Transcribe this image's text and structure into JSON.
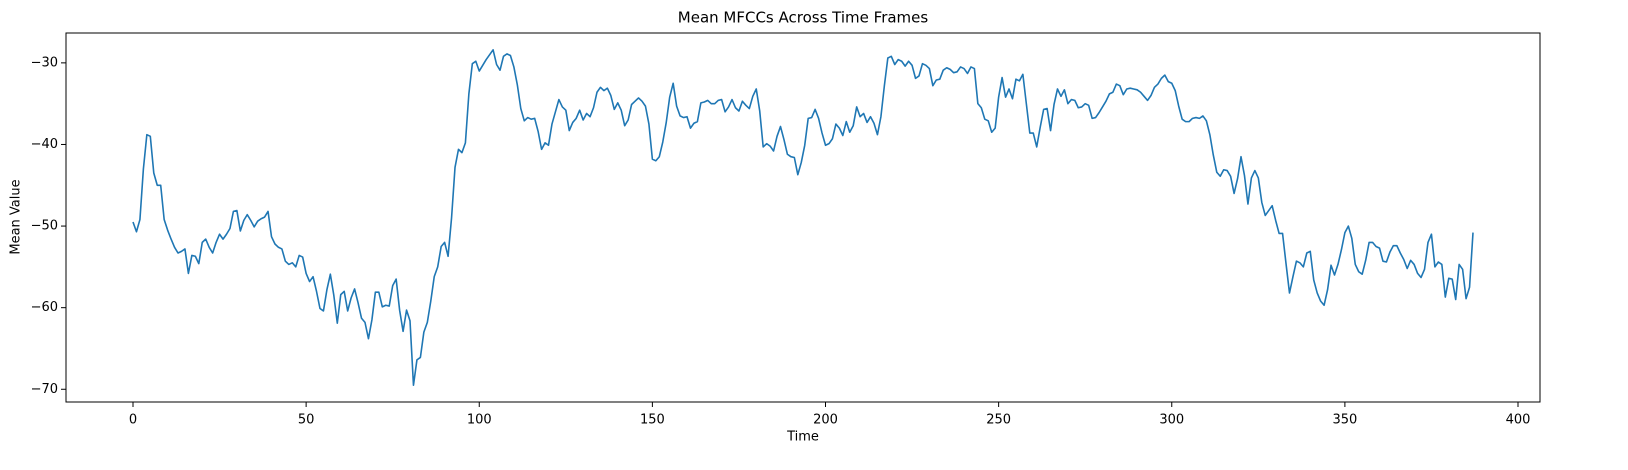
{
  "chart_data": {
    "type": "line",
    "title": "Mean MFCCs Across Time Frames",
    "x_label": "Time",
    "y_label": "Mean Value",
    "color": "#1f77b4",
    "x": [
      0,
      1,
      2,
      3,
      4,
      5,
      6,
      7,
      8,
      9,
      10,
      11,
      12,
      13,
      14,
      15,
      16,
      17,
      18,
      19,
      20,
      21,
      22,
      23,
      24,
      25,
      26,
      27,
      28,
      29,
      30,
      31,
      32,
      33,
      34,
      35,
      36,
      37,
      38,
      39,
      40,
      41,
      42,
      43,
      44,
      45,
      46,
      47,
      48,
      49,
      50,
      51,
      52,
      53,
      54,
      55,
      56,
      57,
      58,
      59,
      60,
      61,
      62,
      63,
      64,
      65,
      66,
      67,
      68,
      69,
      70,
      71,
      72,
      73,
      74,
      75,
      76,
      77,
      78,
      79,
      80,
      81,
      82,
      83,
      84,
      85,
      86,
      87,
      88,
      89,
      90,
      91,
      92,
      93,
      94,
      95,
      96,
      97,
      98,
      99,
      100,
      101,
      102,
      103,
      104,
      105,
      106,
      107,
      108,
      109,
      110,
      111,
      112,
      113,
      114,
      115,
      116,
      117,
      118,
      119,
      120,
      121,
      122,
      123,
      124,
      125,
      126,
      127,
      128,
      129,
      130,
      131,
      132,
      133,
      134,
      135,
      136,
      137,
      138,
      139,
      140,
      141,
      142,
      143,
      144,
      145,
      146,
      147,
      148,
      149,
      150,
      151,
      152,
      153,
      154,
      155,
      156,
      157,
      158,
      159,
      160,
      161,
      162,
      163,
      164,
      165,
      166,
      167,
      168,
      169,
      170,
      171,
      172,
      173,
      174,
      175,
      176,
      177,
      178,
      179,
      180,
      181,
      182,
      183,
      184,
      185,
      186,
      187,
      188,
      189,
      190,
      191,
      192,
      193,
      194,
      195,
      196,
      197,
      198,
      199,
      200,
      201,
      202,
      203,
      204,
      205,
      206,
      207,
      208,
      209,
      210,
      211,
      212,
      213,
      214,
      215,
      216,
      217,
      218,
      219,
      220,
      221,
      222,
      223,
      224,
      225,
      226,
      227,
      228,
      229,
      230,
      231,
      232,
      233,
      234,
      235,
      236,
      237,
      238,
      239,
      240,
      241,
      242,
      243,
      244,
      245,
      246,
      247,
      248,
      249,
      250,
      251,
      252,
      253,
      254,
      255,
      256,
      257,
      258,
      259,
      260,
      261,
      262,
      263,
      264,
      265,
      266,
      267,
      268,
      269,
      270,
      271,
      272,
      273,
      274,
      275,
      276,
      277,
      278,
      279,
      280,
      281,
      282,
      283,
      284,
      285,
      286,
      287,
      288,
      289,
      290,
      291,
      292,
      293,
      294,
      295,
      296,
      297,
      298,
      299,
      300,
      301,
      302,
      303,
      304,
      305,
      306,
      307,
      308,
      309,
      310,
      311,
      312,
      313,
      314,
      315,
      316,
      317,
      318,
      319,
      320,
      321,
      322,
      323,
      324,
      325,
      326,
      327,
      328,
      329,
      330,
      331,
      332,
      333,
      334,
      335,
      336,
      337,
      338,
      339,
      340,
      341,
      342,
      343,
      344,
      345,
      346,
      347,
      348,
      349,
      350,
      351,
      352,
      353,
      354,
      355,
      356,
      357,
      358,
      359,
      360,
      361,
      362,
      363,
      364,
      365,
      366,
      367,
      368,
      369,
      370,
      371,
      372,
      373,
      374,
      375,
      376,
      377,
      378,
      379,
      380,
      381,
      382,
      383,
      384,
      385,
      386,
      387
    ],
    "values": [
      -49.5,
      -50.7,
      -49.2,
      -43,
      -38.8,
      -39,
      -43.5,
      -45,
      -45,
      -49.2,
      -50.5,
      -51.6,
      -52.6,
      -53.3,
      -53.1,
      -52.8,
      -55.8,
      -53.6,
      -53.7,
      -54.6,
      -52,
      -51.6,
      -52.6,
      -53.3,
      -52,
      -51,
      -51.6,
      -51,
      -50.3,
      -48.2,
      -48.1,
      -50.6,
      -49.3,
      -48.6,
      -49.3,
      -50.1,
      -49.4,
      -49.1,
      -48.9,
      -48.2,
      -51.3,
      -52.2,
      -52.6,
      -52.8,
      -54.3,
      -54.7,
      -54.5,
      -55,
      -53.6,
      -53.8,
      -55.8,
      -56.8,
      -56.2,
      -58,
      -60.1,
      -60.4,
      -57.8,
      -55.9,
      -58.5,
      -61.9,
      -58.4,
      -58,
      -60.4,
      -58.8,
      -57.7,
      -59.4,
      -61.3,
      -61.8,
      -63.8,
      -61.5,
      -58.1,
      -58.1,
      -59.9,
      -59.7,
      -59.8,
      -57.3,
      -56.5,
      -60.3,
      -62.9,
      -60.3,
      -61.6,
      -69.5,
      -66.4,
      -66.1,
      -63,
      -61.8,
      -59.2,
      -56.2,
      -55,
      -52.5,
      -52,
      -53.7,
      -49,
      -42.8,
      -40.6,
      -41,
      -39.8,
      -33.8,
      -30.1,
      -29.8,
      -31,
      -30.3,
      -29.6,
      -29,
      -28.4,
      -30.2,
      -30.9,
      -29.2,
      -28.9,
      -29.1,
      -30.5,
      -32.7,
      -35.6,
      -37.1,
      -36.7,
      -36.9,
      -36.8,
      -38.4,
      -40.6,
      -39.8,
      -40.1,
      -37.5,
      -36,
      -34.5,
      -35.4,
      -35.8,
      -38.3,
      -37.3,
      -36.8,
      -35.8,
      -37,
      -36.2,
      -36.6,
      -35.5,
      -33.6,
      -33,
      -33.4,
      -33.1,
      -34,
      -35.7,
      -34.9,
      -35.8,
      -37.7,
      -37,
      -35.1,
      -34.7,
      -34.3,
      -34.7,
      -35.3,
      -37.5,
      -41.8,
      -42,
      -41.5,
      -39.7,
      -37.3,
      -34.2,
      -32.5,
      -35.3,
      -36.5,
      -36.7,
      -36.6,
      -38,
      -37.4,
      -37.2,
      -34.9,
      -34.8,
      -34.6,
      -35,
      -35,
      -34.6,
      -34.5,
      -36,
      -35.4,
      -34.5,
      -35.5,
      -35.9,
      -34.7,
      -35.2,
      -35.6,
      -34.1,
      -33.2,
      -35.9,
      -40.3,
      -39.9,
      -40.2,
      -40.8,
      -39,
      -37.8,
      -39.4,
      -41.2,
      -41.5,
      -41.6,
      -43.7,
      -42.2,
      -40.1,
      -36.8,
      -36.7,
      -35.7,
      -36.8,
      -38.6,
      -40.1,
      -39.9,
      -39.3,
      -37.5,
      -38,
      -38.9,
      -37.2,
      -38.5,
      -37.7,
      -35.4,
      -36.6,
      -36.2,
      -37.3,
      -36.6,
      -37.4,
      -38.8,
      -36.6,
      -32.8,
      -29.4,
      -29.2,
      -30.2,
      -29.6,
      -29.8,
      -30.4,
      -29.8,
      -30.3,
      -31.9,
      -31.6,
      -30.1,
      -30.3,
      -30.7,
      -32.8,
      -32.1,
      -32,
      -30.9,
      -30.6,
      -30.8,
      -31.2,
      -31.1,
      -30.5,
      -30.7,
      -31.3,
      -30.5,
      -30.7,
      -35,
      -35.5,
      -36.9,
      -37.1,
      -38.5,
      -38,
      -34.2,
      -31.8,
      -34.2,
      -33.2,
      -34.4,
      -32,
      -32.2,
      -31.4,
      -35,
      -38.6,
      -38.6,
      -40.3,
      -37.9,
      -35.7,
      -35.6,
      -38.3,
      -35.1,
      -33.2,
      -34.1,
      -33.3,
      -35,
      -34.5,
      -34.6,
      -35.5,
      -35.4,
      -35,
      -35.2,
      -36.8,
      -36.7,
      -36.1,
      -35.4,
      -34.7,
      -33.8,
      -33.6,
      -32.6,
      -32.8,
      -33.9,
      -33.2,
      -33.1,
      -33.2,
      -33.3,
      -33.6,
      -34.1,
      -34.6,
      -34,
      -33,
      -32.6,
      -31.9,
      -31.5,
      -32.3,
      -32.5,
      -33.4,
      -35.3,
      -36.9,
      -37.2,
      -37.2,
      -36.8,
      -36.7,
      -36.8,
      -36.5,
      -37.1,
      -38.8,
      -41.3,
      -43.4,
      -43.9,
      -43.1,
      -43.2,
      -43.9,
      -46,
      -44.2,
      -41.5,
      -43.8,
      -47.3,
      -44.1,
      -43.2,
      -44.1,
      -47.1,
      -48.7,
      -48.1,
      -47.5,
      -49.3,
      -50.9,
      -50.9,
      -54.6,
      -58.2,
      -56.2,
      -54.3,
      -54.5,
      -55,
      -53.3,
      -53.1,
      -56.6,
      -58.2,
      -59.2,
      -59.7,
      -57.8,
      -54.8,
      -56,
      -54.7,
      -52.9,
      -50.8,
      -50,
      -51.5,
      -54.7,
      -55.6,
      -55.9,
      -54.2,
      -52,
      -52,
      -52.5,
      -52.7,
      -54.3,
      -54.4,
      -53.2,
      -52.4,
      -52.4,
      -53.3,
      -54.1,
      -55.2,
      -54.2,
      -54.7,
      -55.8,
      -56.3,
      -55.3,
      -52,
      -51,
      -55,
      -54.4,
      -54.7,
      -58.7,
      -56.4,
      -56.5,
      -59,
      -54.7,
      -55.3,
      -58.9,
      -57.5,
      -50.8
    ],
    "xlim": [
      -19.35,
      406.35
    ],
    "xticks": [
      0,
      50,
      100,
      150,
      200,
      250,
      300,
      350,
      400
    ],
    "ylim": [
      -71.56,
      -26.34
    ],
    "yticks": [
      {
        "value": -70,
        "label": "−70"
      },
      {
        "value": -60,
        "label": "−60"
      },
      {
        "value": -50,
        "label": "−50"
      },
      {
        "value": -40,
        "label": "−40"
      },
      {
        "value": -30,
        "label": "−30"
      }
    ],
    "grid": false
  }
}
